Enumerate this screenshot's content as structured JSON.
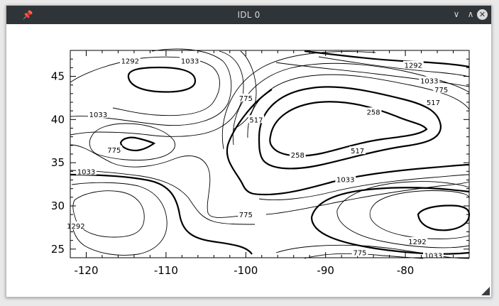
{
  "window": {
    "title": "IDL 0",
    "pin_icon": "pin-icon",
    "minimize_icon": "chevron-down-icon",
    "maximize_icon": "chevron-up-icon",
    "close_icon": "close-icon"
  },
  "chart_data": {
    "type": "contour",
    "title": "",
    "xlabel": "",
    "ylabel": "",
    "xlim": [
      -122,
      -72
    ],
    "ylim": [
      24,
      48
    ],
    "x_ticks": [
      "-120",
      "-110",
      "-100",
      "-90",
      "-80"
    ],
    "y_ticks": [
      "25",
      "30",
      "35",
      "40",
      "45"
    ],
    "contour_labels": [
      {
        "text": "1292",
        "x": -114.5,
        "y": 46.8
      },
      {
        "text": "1033",
        "x": -107.0,
        "y": 46.8
      },
      {
        "text": "1292",
        "x": -79.0,
        "y": 46.3
      },
      {
        "text": "1033",
        "x": -77.0,
        "y": 44.5
      },
      {
        "text": "775",
        "x": -75.5,
        "y": 43.5
      },
      {
        "text": "517",
        "x": -76.5,
        "y": 42.0
      },
      {
        "text": "1033",
        "x": -118.5,
        "y": 40.6
      },
      {
        "text": "775",
        "x": -100.0,
        "y": 42.5
      },
      {
        "text": "517",
        "x": -98.7,
        "y": 40.0
      },
      {
        "text": "258",
        "x": -84.0,
        "y": 40.9
      },
      {
        "text": "775",
        "x": -116.5,
        "y": 36.5
      },
      {
        "text": "258",
        "x": -93.5,
        "y": 35.9
      },
      {
        "text": "517",
        "x": -86.0,
        "y": 36.4
      },
      {
        "text": "1033",
        "x": -120.0,
        "y": 34.0
      },
      {
        "text": "1033",
        "x": -87.5,
        "y": 33.1
      },
      {
        "text": "775",
        "x": -100.0,
        "y": 29.0
      },
      {
        "text": "1292",
        "x": -121.3,
        "y": 27.7
      },
      {
        "text": "1292",
        "x": -78.5,
        "y": 25.9
      },
      {
        "text": "775",
        "x": -85.7,
        "y": 24.6
      },
      {
        "text": "1033",
        "x": -76.5,
        "y": 24.3
      }
    ]
  }
}
